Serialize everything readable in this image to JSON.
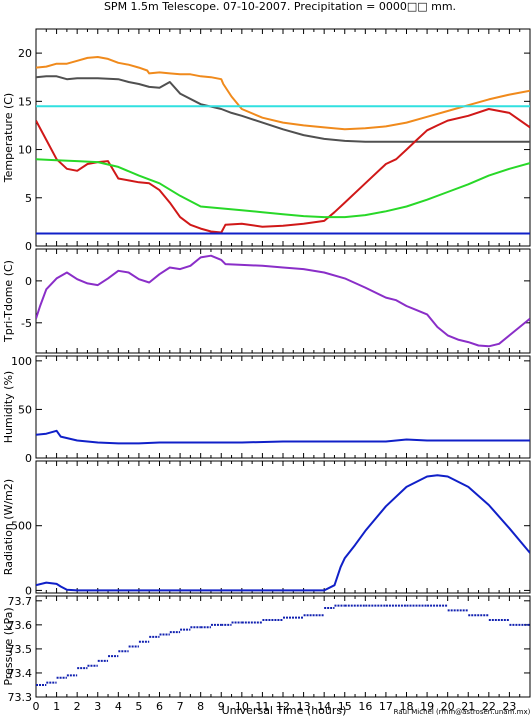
{
  "title": "SPM 1.5m Telescope. 07-10-2007. Precipitation = 0000□□ mm.",
  "credit": "Raul Michel (rmm@astrosen.unam.mx)",
  "colors": {
    "orange": "#f08a1c",
    "gray": "#505050",
    "cyan": "#30e0e0",
    "red": "#d01818",
    "green": "#28d828",
    "blue": "#1020c8",
    "purple": "#8a2ec8",
    "darkblue": "#1020b0"
  },
  "chart_data": [
    {
      "type": "line",
      "ylabel": "Temperature (C)",
      "xlim": [
        0,
        24
      ],
      "ylim": [
        0,
        22.5
      ],
      "yticks": [
        "0",
        "5",
        "10",
        "15",
        "20"
      ],
      "ytick_values": [
        0,
        5,
        10,
        15,
        20
      ],
      "series": [
        {
          "color": "orange",
          "x": [
            0,
            0.5,
            1,
            1.5,
            2,
            2.5,
            3,
            3.5,
            4,
            4.5,
            5,
            5.4,
            5.5,
            6,
            6.5,
            7,
            7.5,
            8,
            8.5,
            9,
            9.1,
            9.5,
            10,
            11,
            12,
            13,
            14,
            15,
            16,
            17,
            18,
            19,
            20,
            21,
            22,
            23,
            24
          ],
          "y": [
            18.5,
            18.6,
            18.9,
            18.9,
            19.2,
            19.5,
            19.6,
            19.4,
            19.0,
            18.8,
            18.5,
            18.2,
            17.9,
            18.0,
            17.9,
            17.8,
            17.8,
            17.6,
            17.5,
            17.3,
            16.8,
            15.5,
            14.2,
            13.3,
            12.8,
            12.5,
            12.3,
            12.1,
            12.2,
            12.4,
            12.8,
            13.4,
            14.0,
            14.6,
            15.2,
            15.7,
            16.1
          ]
        },
        {
          "color": "gray",
          "x": [
            0,
            0.5,
            1,
            1.5,
            2,
            3,
            4,
            4.5,
            5,
            5.5,
            6,
            6.5,
            7,
            8,
            9,
            9.5,
            10,
            11,
            12,
            13,
            14,
            15,
            16,
            17,
            18,
            20,
            22,
            24
          ],
          "y": [
            17.5,
            17.6,
            17.6,
            17.3,
            17.4,
            17.4,
            17.3,
            17.0,
            16.8,
            16.5,
            16.4,
            17.0,
            15.8,
            14.7,
            14.2,
            13.8,
            13.5,
            12.8,
            12.1,
            11.5,
            11.1,
            10.9,
            10.8,
            10.8,
            10.8,
            10.8,
            10.8,
            10.8
          ]
        },
        {
          "color": "cyan",
          "x": [
            0,
            24
          ],
          "y": [
            14.5,
            14.5
          ]
        },
        {
          "color": "red",
          "x": [
            0,
            0.5,
            1,
            1.5,
            2,
            2.5,
            3,
            3.5,
            4,
            4.5,
            5,
            5.5,
            6,
            6.5,
            7,
            7.5,
            8,
            8.5,
            9,
            9.2,
            10,
            11,
            12,
            13,
            14,
            14.5,
            15,
            16,
            17,
            17.5,
            18,
            18.5,
            19,
            19.5,
            20,
            21,
            22,
            23,
            24
          ],
          "y": [
            13.0,
            11.0,
            9.0,
            8.0,
            7.8,
            8.5,
            8.7,
            8.8,
            7.0,
            6.8,
            6.6,
            6.5,
            5.8,
            4.5,
            3.0,
            2.2,
            1.8,
            1.5,
            1.4,
            2.2,
            2.3,
            2.0,
            2.1,
            2.3,
            2.6,
            3.5,
            4.5,
            6.5,
            8.5,
            9.0,
            10.0,
            11.0,
            12.0,
            12.5,
            13.0,
            13.5,
            14.2,
            13.8,
            12.3
          ]
        },
        {
          "color": "green",
          "x": [
            0,
            1,
            2,
            3,
            4,
            5,
            6,
            7,
            8,
            9,
            10,
            11,
            12,
            13,
            14,
            15,
            16,
            17,
            18,
            19,
            20,
            21,
            22,
            23,
            24
          ],
          "y": [
            9.0,
            8.9,
            8.8,
            8.7,
            8.2,
            7.3,
            6.5,
            5.2,
            4.1,
            3.9,
            3.7,
            3.5,
            3.3,
            3.1,
            3.0,
            3.0,
            3.2,
            3.6,
            4.1,
            4.8,
            5.6,
            6.4,
            7.3,
            8.0,
            8.6
          ]
        },
        {
          "color": "blue",
          "x": [
            0,
            24
          ],
          "y": [
            1.3,
            1.3
          ]
        }
      ]
    },
    {
      "type": "line",
      "ylabel": "Tpri-Tdome (C)",
      "xlim": [
        0,
        24
      ],
      "ylim": [
        -8.6,
        3.8
      ],
      "yticks": [
        "-5",
        "0"
      ],
      "ytick_values": [
        -5,
        0
      ],
      "series": [
        {
          "color": "purple",
          "x": [
            0,
            0.2,
            0.5,
            1,
            1.5,
            2,
            2.5,
            3,
            3.5,
            4,
            4.5,
            5,
            5.5,
            6,
            6.5,
            7,
            7.5,
            8,
            8.5,
            9,
            9.2,
            10,
            11,
            12,
            13,
            14,
            15,
            16,
            17,
            17.5,
            18,
            18.5,
            19,
            19.5,
            20,
            20.5,
            21,
            21.5,
            22,
            22.5,
            23,
            23.5,
            24
          ],
          "y": [
            -4.5,
            -3.0,
            -1.0,
            0.3,
            1.0,
            0.2,
            -0.3,
            -0.5,
            0.3,
            1.2,
            1.0,
            0.2,
            -0.2,
            0.8,
            1.6,
            1.4,
            1.8,
            2.8,
            3.0,
            2.5,
            2.0,
            1.9,
            1.8,
            1.6,
            1.4,
            1.0,
            0.3,
            -0.8,
            -2.0,
            -2.3,
            -3.0,
            -3.5,
            -4.0,
            -5.5,
            -6.5,
            -7.0,
            -7.3,
            -7.7,
            -7.8,
            -7.5,
            -6.5,
            -5.5,
            -4.5
          ]
        }
      ]
    },
    {
      "type": "line",
      "ylabel": "Humidity (%)",
      "xlim": [
        0,
        24
      ],
      "ylim": [
        0,
        105
      ],
      "yticks": [
        "0",
        "50",
        "100"
      ],
      "ytick_values": [
        0,
        50,
        100
      ],
      "series": [
        {
          "color": "blue",
          "x": [
            0,
            0.5,
            1,
            1.2,
            2,
            3,
            4,
            5,
            6,
            8,
            10,
            12,
            14,
            16,
            17,
            18,
            19,
            20,
            21,
            22,
            24
          ],
          "y": [
            24,
            25,
            28,
            22,
            18,
            16,
            15,
            15,
            16,
            16,
            16,
            17,
            17,
            17,
            17,
            19,
            18,
            18,
            18,
            18,
            18
          ]
        }
      ]
    },
    {
      "type": "line",
      "ylabel": "Radiation (W/m2)",
      "xlim": [
        0,
        24
      ],
      "ylim": [
        -20,
        1000
      ],
      "yticks": [
        "0",
        "500"
      ],
      "ytick_values": [
        0,
        500
      ],
      "series": [
        {
          "color": "blue",
          "x": [
            0,
            0.5,
            1,
            1.2,
            1.5,
            2,
            14,
            14.5,
            14.8,
            15,
            15.5,
            16,
            17,
            18,
            19,
            19.5,
            20,
            21,
            22,
            23,
            24
          ],
          "y": [
            40,
            60,
            50,
            30,
            5,
            0,
            0,
            40,
            180,
            250,
            350,
            460,
            650,
            800,
            880,
            890,
            880,
            800,
            660,
            480,
            290
          ]
        }
      ]
    },
    {
      "type": "scatter",
      "ylabel": "Pressure (kPa)",
      "xlim": [
        0,
        24
      ],
      "ylim": [
        73.3,
        73.72
      ],
      "yticks": [
        "73.3",
        "73.4",
        "73.5",
        "73.6",
        "73.7"
      ],
      "ytick_values": [
        73.3,
        73.4,
        73.5,
        73.6,
        73.7
      ],
      "series": [
        {
          "color": "darkblue",
          "x": [
            0,
            0.5,
            1,
            1.5,
            2,
            2.5,
            3,
            3.5,
            4,
            4.5,
            5,
            5.5,
            6,
            6.5,
            7,
            7.5,
            8,
            8.5,
            9,
            9.5,
            10,
            11,
            12,
            13,
            14,
            14.5,
            15,
            16,
            17,
            18,
            19,
            20,
            21,
            22,
            23,
            24
          ],
          "y": [
            73.35,
            73.36,
            73.38,
            73.39,
            73.42,
            73.43,
            73.45,
            73.47,
            73.49,
            73.51,
            73.53,
            73.55,
            73.56,
            73.57,
            73.58,
            73.59,
            73.59,
            73.6,
            73.6,
            73.61,
            73.61,
            73.62,
            73.63,
            73.64,
            73.67,
            73.68,
            73.68,
            73.68,
            73.68,
            73.68,
            73.68,
            73.66,
            73.64,
            73.62,
            73.6,
            73.6
          ]
        }
      ]
    }
  ],
  "xaxis": {
    "label": "Universal Time (hours)",
    "ticks": [
      "0",
      "1",
      "2",
      "3",
      "4",
      "5",
      "6",
      "7",
      "8",
      "9",
      "10",
      "11",
      "12",
      "13",
      "14",
      "15",
      "16",
      "17",
      "18",
      "19",
      "20",
      "21",
      "22",
      "23"
    ],
    "tick_values": [
      0,
      1,
      2,
      3,
      4,
      5,
      6,
      7,
      8,
      9,
      10,
      11,
      12,
      13,
      14,
      15,
      16,
      17,
      18,
      19,
      20,
      21,
      22,
      23
    ]
  }
}
